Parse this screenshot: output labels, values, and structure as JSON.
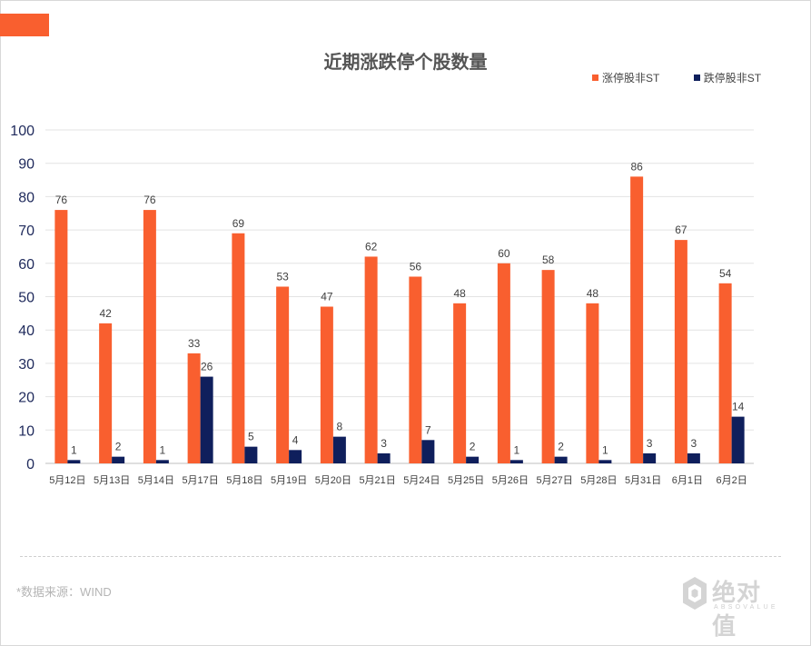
{
  "header": {
    "accent_color": "#f95f2f"
  },
  "chart_data": {
    "type": "bar",
    "title": "近期涨跌停个股数量",
    "categories": [
      "5月12日",
      "5月13日",
      "5月14日",
      "5月17日",
      "5月18日",
      "5月19日",
      "5月20日",
      "5月21日",
      "5月24日",
      "5月25日",
      "5月26日",
      "5月27日",
      "5月28日",
      "5月31日",
      "6月1日",
      "6月2日"
    ],
    "series": [
      {
        "name": "涨停股非ST",
        "color": "#f95f2f",
        "values": [
          76,
          42,
          76,
          33,
          69,
          53,
          47,
          62,
          56,
          48,
          60,
          58,
          48,
          86,
          67,
          54
        ]
      },
      {
        "name": "跌停股非ST",
        "color": "#0f1f5c",
        "values": [
          1,
          2,
          1,
          26,
          5,
          4,
          8,
          3,
          7,
          2,
          1,
          2,
          1,
          3,
          3,
          14
        ]
      }
    ],
    "ylim": [
      0,
      100
    ],
    "yticks": [
      0,
      10,
      20,
      30,
      40,
      50,
      60,
      70,
      80,
      90,
      100
    ],
    "grid": true,
    "legend_position": "top-right",
    "data_labels": true
  },
  "footer": {
    "source": "*数据来源：WIND",
    "logo_text": "绝对值",
    "logo_subtext": "ABSOVALUE"
  }
}
